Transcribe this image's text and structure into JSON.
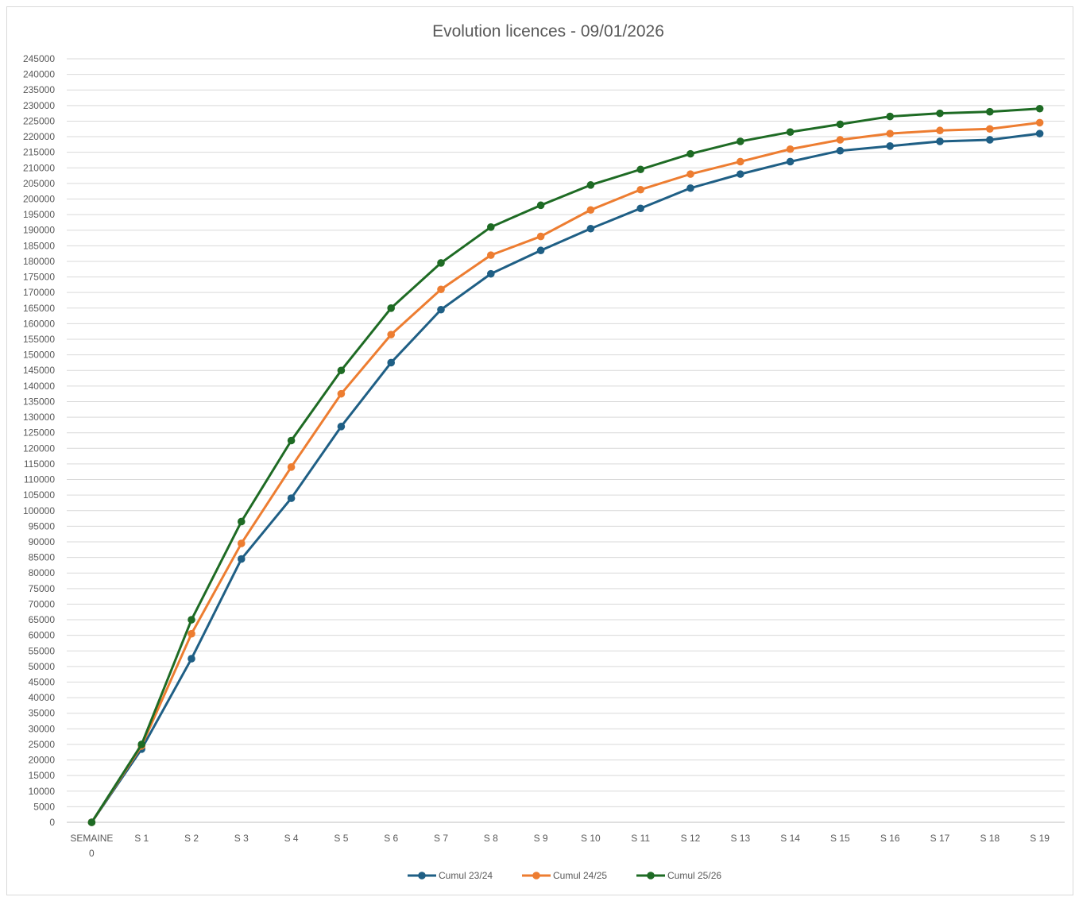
{
  "chart_data": {
    "type": "line",
    "title": "Evolution licences - 09/01/2026",
    "xlabel": "",
    "ylabel": "",
    "ylim": [
      0,
      245000
    ],
    "ytick_step": 5000,
    "grid": true,
    "legend_position": "bottom",
    "categories": [
      "SEMAINE 0",
      "S 1",
      "S 2",
      "S 3",
      "S 4",
      "S 5",
      "S 6",
      "S 7",
      "S 8",
      "S 9",
      "S 10",
      "S 11",
      "S 12",
      "S 13",
      "S 14",
      "S 15",
      "S 16",
      "S 17",
      "S 18",
      "S 19"
    ],
    "series": [
      {
        "name": "Cumul 23/24",
        "color": "#1f5f85",
        "values": [
          0,
          23500,
          52500,
          84500,
          104000,
          127000,
          147500,
          164500,
          176000,
          183500,
          190500,
          197000,
          203500,
          208000,
          212000,
          215500,
          217000,
          218500,
          219000,
          221000
        ]
      },
      {
        "name": "Cumul 24/25",
        "color": "#ed7d31",
        "values": [
          0,
          24500,
          60500,
          89500,
          114000,
          137500,
          156500,
          171000,
          182000,
          188000,
          196500,
          203000,
          208000,
          212000,
          216000,
          219000,
          221000,
          222000,
          222500,
          224500
        ]
      },
      {
        "name": "Cumul 25/26",
        "color": "#1e6b24",
        "values": [
          0,
          25000,
          65000,
          96500,
          122500,
          145000,
          165000,
          179500,
          191000,
          198000,
          204500,
          209500,
          214500,
          218500,
          221500,
          224000,
          226500,
          227500,
          228000,
          229000
        ]
      }
    ]
  }
}
